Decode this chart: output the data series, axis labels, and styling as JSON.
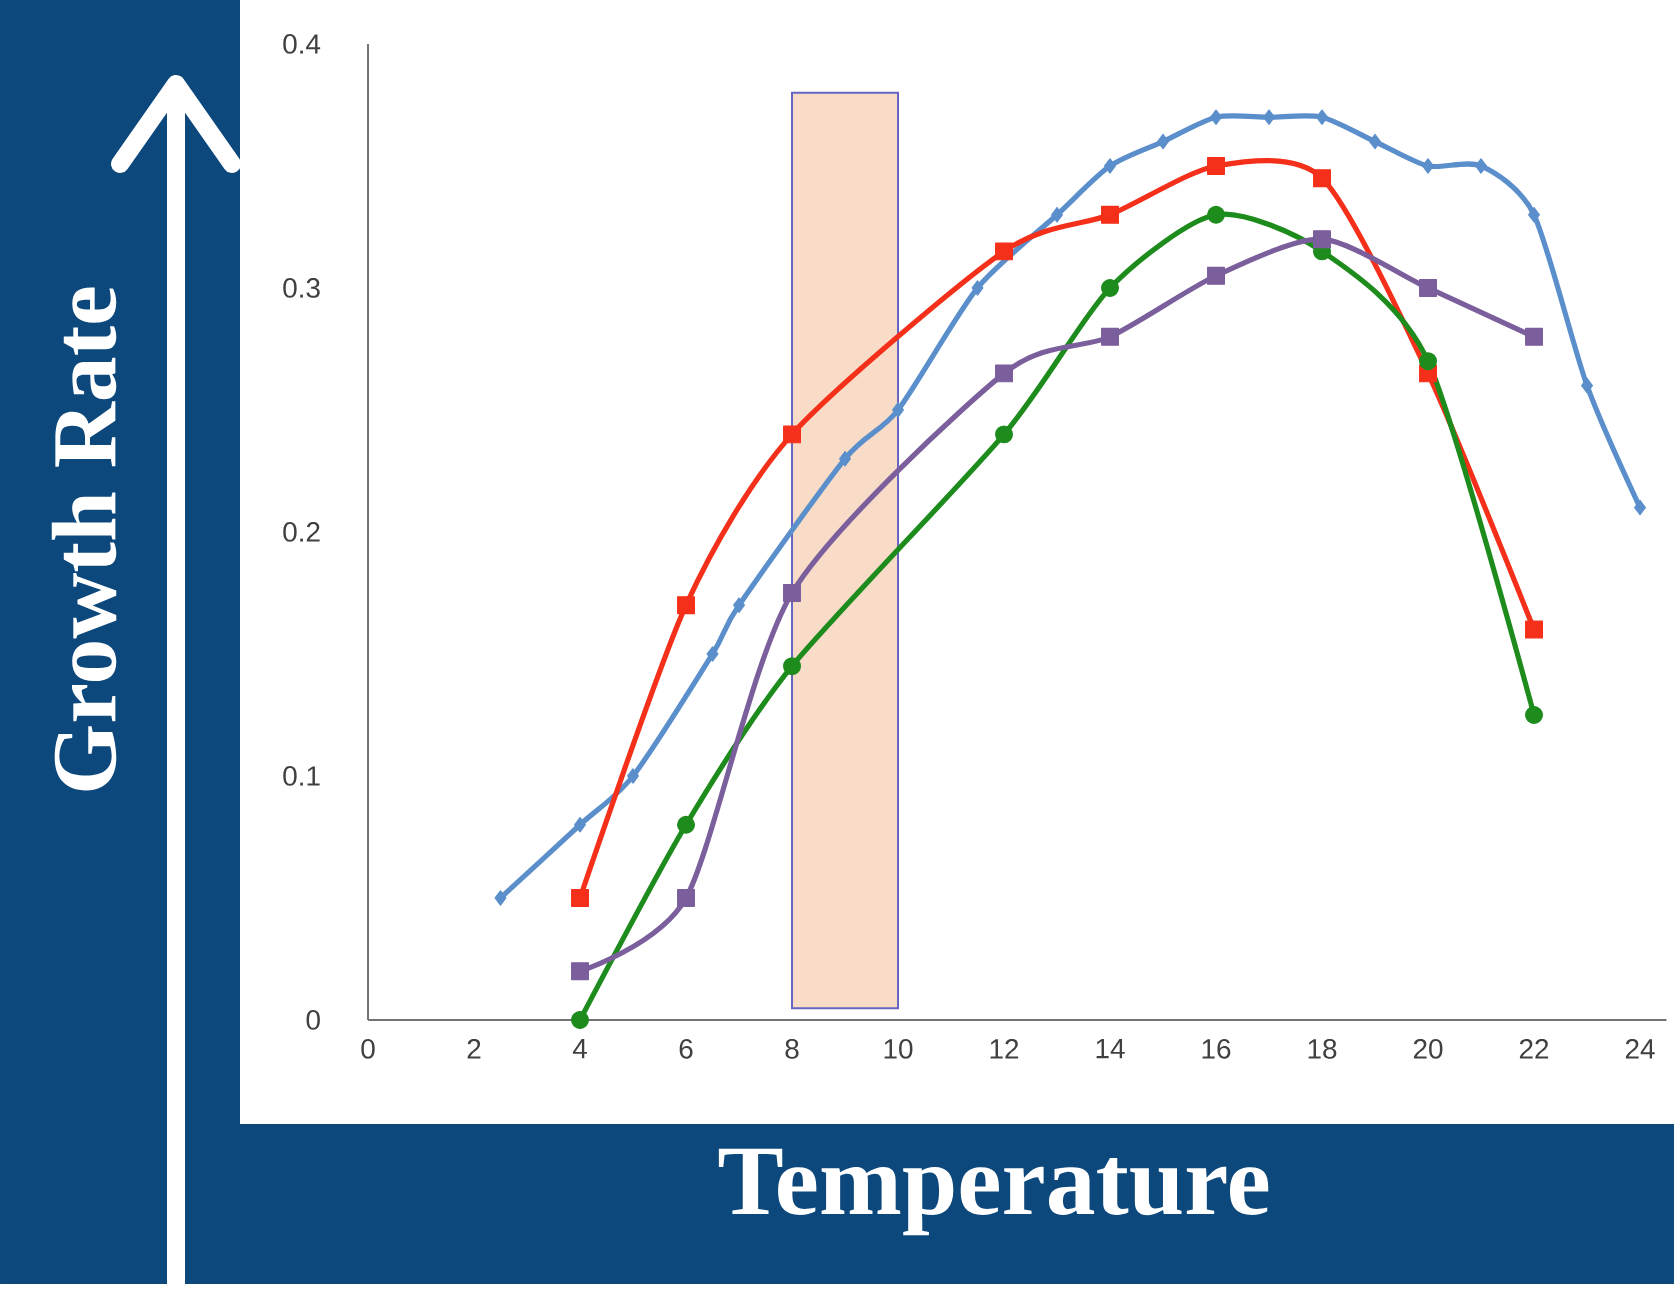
{
  "chart_data": {
    "type": "line",
    "xlabel": "Temperature",
    "ylabel": "Growth Rate",
    "xlim": [
      0,
      24.5
    ],
    "ylim": [
      0,
      0.4
    ],
    "xticks": [
      0,
      2,
      4,
      6,
      8,
      10,
      12,
      14,
      16,
      18,
      20,
      22,
      24
    ],
    "yticks": [
      0,
      0.1,
      0.2,
      0.3,
      0.4
    ],
    "grid": false,
    "line_style": "solid",
    "series": [
      {
        "color": "#5b8fcb",
        "marker": "diamond",
        "x": [
          2.5,
          4,
          5,
          6.5,
          7,
          9,
          10,
          11.5,
          13,
          14,
          15,
          16,
          17,
          18,
          19,
          20,
          21,
          22,
          23,
          24
        ],
        "values": [
          0.05,
          0.08,
          0.1,
          0.15,
          0.17,
          0.23,
          0.25,
          0.3,
          0.33,
          0.35,
          0.36,
          0.37,
          0.37,
          0.37,
          0.36,
          0.35,
          0.35,
          0.33,
          0.26,
          0.21
        ]
      },
      {
        "color": "#f5301a",
        "marker": "square",
        "x": [
          4,
          6,
          8,
          12,
          14,
          16,
          18,
          20,
          22
        ],
        "values": [
          0.05,
          0.17,
          0.24,
          0.315,
          0.33,
          0.35,
          0.345,
          0.265,
          0.16
        ]
      },
      {
        "color": "#1d8c1d",
        "marker": "circle",
        "x": [
          4,
          6,
          8,
          12,
          14,
          16,
          18,
          20,
          22
        ],
        "values": [
          0,
          0.08,
          0.145,
          0.24,
          0.3,
          0.33,
          0.315,
          0.27,
          0.125
        ]
      },
      {
        "color": "#7b5e9c",
        "marker": "square",
        "x": [
          4,
          6,
          8,
          12,
          14,
          16,
          18,
          20,
          22
        ],
        "values": [
          0.02,
          0.05,
          0.175,
          0.265,
          0.28,
          0.305,
          0.32,
          0.3,
          0.28
        ]
      }
    ],
    "bands": [
      {
        "axis": "x",
        "from": 8,
        "to": 10,
        "color": "#f9dcc8"
      }
    ]
  }
}
